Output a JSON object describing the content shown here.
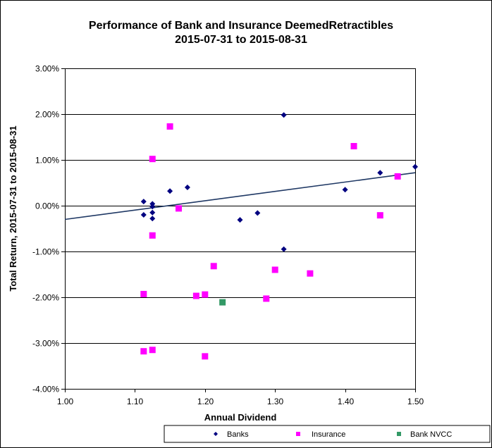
{
  "chart_data": {
    "type": "scatter",
    "title": "Performance of Bank and Insurance DeemedRetractibles",
    "subtitle": "2015-07-31 to 2015-08-31",
    "xlabel": "Annual Dividend",
    "ylabel": "Total Return, 2015-07-31  to 2015-08-31",
    "xlim": [
      1.0,
      1.5
    ],
    "ylim": [
      -4.0,
      3.0
    ],
    "x_ticks": [
      "1.00",
      "1.10",
      "1.20",
      "1.30",
      "1.40",
      "1.50"
    ],
    "y_ticks": [
      "3.00%",
      "2.00%",
      "1.00%",
      "0.00%",
      "-1.00%",
      "-2.00%",
      "-3.00%",
      "-4.00%"
    ],
    "grid": "horizontal",
    "legend_position": "bottom",
    "series": [
      {
        "name": "Banks",
        "marker": "diamond",
        "color": "#000080",
        "points": [
          {
            "x": 1.1125,
            "y": 0.09
          },
          {
            "x": 1.1125,
            "y": -0.2
          },
          {
            "x": 1.125,
            "y": 0.04
          },
          {
            "x": 1.125,
            "y": -0.02
          },
          {
            "x": 1.125,
            "y": -0.15
          },
          {
            "x": 1.125,
            "y": -0.28
          },
          {
            "x": 1.15,
            "y": 0.32
          },
          {
            "x": 1.175,
            "y": 0.4
          },
          {
            "x": 1.25,
            "y": -0.31
          },
          {
            "x": 1.275,
            "y": -0.16
          },
          {
            "x": 1.3125,
            "y": 1.98
          },
          {
            "x": 1.3125,
            "y": -0.95
          },
          {
            "x": 1.4,
            "y": 0.35
          },
          {
            "x": 1.45,
            "y": 0.72
          },
          {
            "x": 1.5,
            "y": 0.85
          }
        ]
      },
      {
        "name": "Insurance",
        "marker": "square",
        "color": "#ff00ff",
        "points": [
          {
            "x": 1.125,
            "y": 1.02
          },
          {
            "x": 1.15,
            "y": 1.73
          },
          {
            "x": 1.1625,
            "y": -0.06
          },
          {
            "x": 1.125,
            "y": -0.65
          },
          {
            "x": 1.1125,
            "y": -1.93
          },
          {
            "x": 1.1875,
            "y": -1.97
          },
          {
            "x": 1.2,
            "y": -1.94
          },
          {
            "x": 1.2125,
            "y": -1.32
          },
          {
            "x": 1.2875,
            "y": -2.03
          },
          {
            "x": 1.3,
            "y": -1.4
          },
          {
            "x": 1.35,
            "y": -1.48
          },
          {
            "x": 1.1125,
            "y": -3.18
          },
          {
            "x": 1.125,
            "y": -3.15
          },
          {
            "x": 1.2,
            "y": -3.29
          },
          {
            "x": 1.4125,
            "y": 1.3
          },
          {
            "x": 1.45,
            "y": -0.21
          },
          {
            "x": 1.475,
            "y": 0.64
          }
        ]
      },
      {
        "name": "Bank NVCC",
        "marker": "square",
        "color": "#339966",
        "points": [
          {
            "x": 1.225,
            "y": -2.11
          }
        ]
      }
    ],
    "trendline": {
      "x": [
        1.0,
        1.5
      ],
      "y": [
        -0.3,
        0.72
      ],
      "color": "#1f3864"
    }
  }
}
